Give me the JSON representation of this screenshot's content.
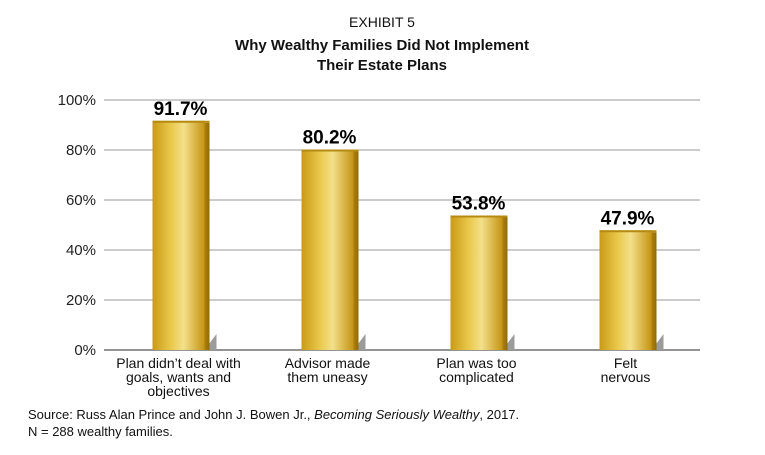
{
  "chart_data": {
    "type": "bar",
    "exhibit": "EXHIBIT 5",
    "title_lines": [
      "Why Wealthy Families Did Not Implement",
      "Their Estate Plans"
    ],
    "categories": [
      [
        "Plan didn’t deal with",
        "goals, wants and",
        "objectives"
      ],
      [
        "Advisor made",
        "them uneasy"
      ],
      [
        "Plan was too",
        "complicated"
      ],
      [
        "Felt",
        "nervous"
      ]
    ],
    "values": [
      91.7,
      80.2,
      53.8,
      47.9
    ],
    "value_labels": [
      "91.7%",
      "80.2%",
      "53.8%",
      "47.9%"
    ],
    "ylim": [
      0,
      100
    ],
    "yticks": [
      0,
      20,
      40,
      60,
      80,
      100
    ],
    "ytick_labels": [
      "0%",
      "20%",
      "40%",
      "60%",
      "80%",
      "100%"
    ],
    "grid": true,
    "bar_color": "#d9b53a"
  },
  "source": {
    "prefix": "Source: Russ Alan Prince and John J. Bowen Jr., ",
    "book": "Becoming Seriously Wealthy",
    "suffix": ", 2017.",
    "note": "N = 288 wealthy families."
  }
}
